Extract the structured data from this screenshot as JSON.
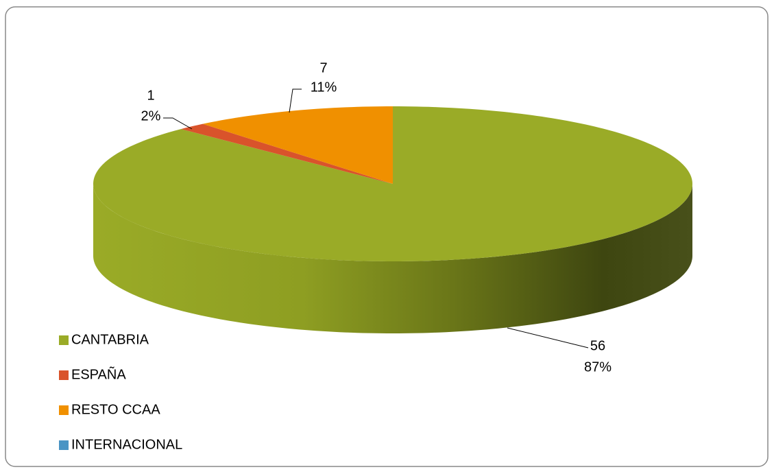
{
  "chart_data": {
    "type": "pie3d",
    "categories": [
      "CANTABRIA",
      "ESPAÑA",
      "RESTO CCAA",
      "INTERNACIONAL"
    ],
    "values": [
      56,
      1,
      7,
      0
    ],
    "percentages": [
      {
        "value": 87,
        "label": "87%"
      },
      {
        "value": 2,
        "label": "2%"
      },
      {
        "value": 11,
        "label": "11%"
      },
      null
    ],
    "colors": [
      "#9aab27",
      "#d9532b",
      "#f09000",
      "#4a94c4"
    ],
    "legend": "left"
  }
}
